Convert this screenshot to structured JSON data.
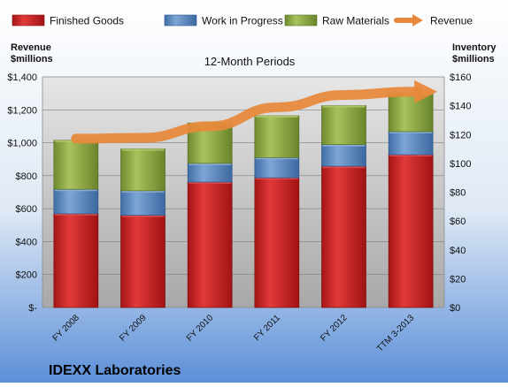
{
  "chart_data": {
    "type": "bar",
    "stacked": true,
    "title": "12-Month Periods",
    "company": "IDEXX Laboratories",
    "left_axis_label": [
      "Revenue",
      "$millions"
    ],
    "right_axis_label": [
      "Inventory",
      "$millions"
    ],
    "categories": [
      "FY 2008",
      "FY 2009",
      "FY 2010",
      "FY 2011",
      "FY 2012",
      "TTM 3-2013"
    ],
    "series": [
      {
        "name": "Finished Goods",
        "axis": "right",
        "color": "#d42020",
        "values": [
          65,
          64,
          87,
          90,
          98,
          106
        ]
      },
      {
        "name": "Work in Progress",
        "axis": "right",
        "color": "#4f81bd",
        "values": [
          17,
          17,
          13,
          14,
          15,
          16
        ]
      },
      {
        "name": "Raw Materials",
        "axis": "right",
        "color": "#8aa842",
        "values": [
          34,
          29,
          28,
          29,
          27,
          27
        ]
      },
      {
        "name": "Revenue",
        "axis": "left",
        "type": "line",
        "color": "#e8883a",
        "values": [
          1025,
          1030,
          1100,
          1215,
          1290,
          1310
        ]
      }
    ],
    "left_axis": {
      "min": 0,
      "max": 1400,
      "step": 200,
      "ticks": [
        "$-",
        "$200",
        "$400",
        "$600",
        "$800",
        "$1,000",
        "$1,200",
        "$1,400"
      ]
    },
    "right_axis": {
      "min": 0,
      "max": 160,
      "step": 20,
      "ticks": [
        "$0",
        "$20",
        "$40",
        "$60",
        "$80",
        "$100",
        "$120",
        "$140",
        "$160"
      ]
    },
    "grid": true,
    "legend_position": "top"
  }
}
